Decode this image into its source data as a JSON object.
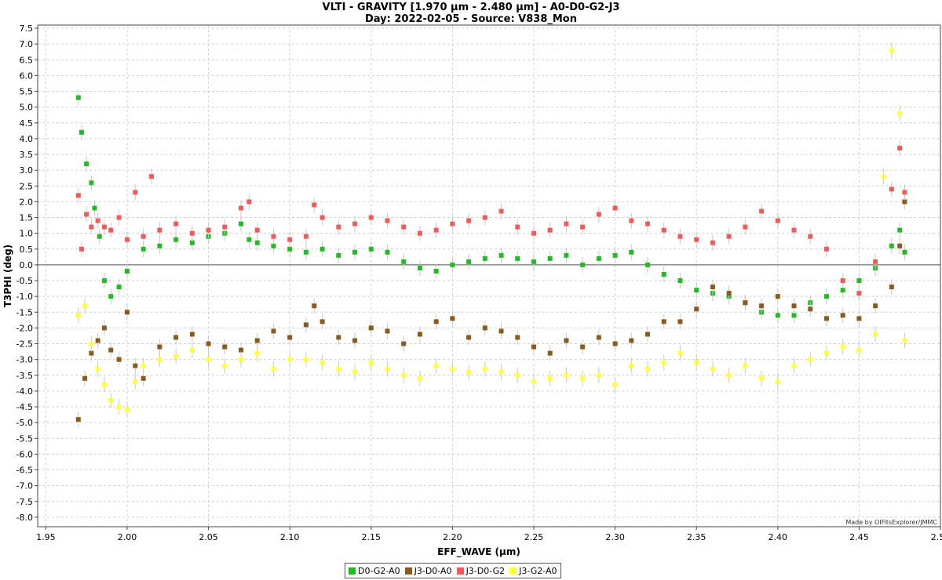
{
  "chart_data": {
    "type": "scatter",
    "title": "VLTI - GRAVITY [1.970 µm - 2.480 µm] - A0-D0-G2-J3",
    "subtitle": "Day: 2022-02-05 - Source: V838_Mon",
    "xlabel": "EFF_WAVE (µm)",
    "ylabel": "T3PHI (deg)",
    "xlim": [
      1.945,
      2.5
    ],
    "ylim": [
      -8.3,
      7.6
    ],
    "xticks": [
      "1.95",
      "2.00",
      "2.05",
      "2.10",
      "2.15",
      "2.20",
      "2.25",
      "2.30",
      "2.35",
      "2.40",
      "2.45",
      "2.50"
    ],
    "yticks": [
      "7.5",
      "7.0",
      "6.5",
      "6.0",
      "5.5",
      "5.0",
      "4.5",
      "4.0",
      "3.5",
      "3.0",
      "2.5",
      "2.0",
      "1.5",
      "1.0",
      "0.5",
      "0.0",
      "-0.5",
      "-1.0",
      "-1.5",
      "-2.0",
      "-2.5",
      "-3.0",
      "-3.5",
      "-4.0",
      "-4.5",
      "-5.0",
      "-5.5",
      "-6.0",
      "-6.5",
      "-7.0",
      "-7.5",
      "-8.0"
    ],
    "grid": true,
    "legend_position": "bottom-center",
    "credit": "Made by OIFitsExplorer/JMMC",
    "series": [
      {
        "name": "D0-G2-A0",
        "color": "#22bb22",
        "x": [
          1.97,
          1.972,
          1.975,
          1.978,
          1.98,
          1.983,
          1.986,
          1.99,
          1.995,
          2.0,
          2.01,
          2.02,
          2.03,
          2.04,
          2.05,
          2.06,
          2.07,
          2.075,
          2.08,
          2.09,
          2.1,
          2.11,
          2.12,
          2.13,
          2.14,
          2.15,
          2.16,
          2.17,
          2.18,
          2.19,
          2.2,
          2.21,
          2.22,
          2.23,
          2.24,
          2.25,
          2.26,
          2.27,
          2.28,
          2.29,
          2.3,
          2.31,
          2.32,
          2.33,
          2.34,
          2.35,
          2.36,
          2.37,
          2.38,
          2.39,
          2.4,
          2.41,
          2.42,
          2.43,
          2.44,
          2.45,
          2.46,
          2.47,
          2.475,
          2.478
        ],
        "y": [
          5.3,
          4.2,
          3.2,
          2.6,
          1.8,
          0.9,
          -0.5,
          -1.0,
          -0.7,
          -0.2,
          0.5,
          0.6,
          0.8,
          0.7,
          0.9,
          1.0,
          1.3,
          0.8,
          0.7,
          0.6,
          0.5,
          0.4,
          0.5,
          0.3,
          0.4,
          0.5,
          0.4,
          0.1,
          -0.1,
          -0.2,
          0.0,
          0.1,
          0.2,
          0.3,
          0.2,
          0.1,
          0.2,
          0.3,
          0.0,
          0.2,
          0.3,
          0.4,
          0.0,
          -0.3,
          -0.5,
          -0.8,
          -0.9,
          -1.0,
          -1.2,
          -1.5,
          -1.6,
          -1.6,
          -1.2,
          -1.0,
          -0.8,
          -0.5,
          -0.1,
          0.6,
          1.1,
          0.4
        ]
      },
      {
        "name": "J3-D0-A0",
        "color": "#8b5a1f",
        "x": [
          1.97,
          1.974,
          1.978,
          1.982,
          1.986,
          1.99,
          1.995,
          2.0,
          2.005,
          2.01,
          2.02,
          2.03,
          2.04,
          2.05,
          2.06,
          2.07,
          2.08,
          2.09,
          2.1,
          2.11,
          2.115,
          2.12,
          2.13,
          2.14,
          2.15,
          2.16,
          2.17,
          2.18,
          2.19,
          2.2,
          2.21,
          2.22,
          2.23,
          2.24,
          2.25,
          2.26,
          2.27,
          2.28,
          2.29,
          2.3,
          2.31,
          2.32,
          2.33,
          2.34,
          2.35,
          2.36,
          2.37,
          2.38,
          2.39,
          2.4,
          2.41,
          2.42,
          2.43,
          2.44,
          2.45,
          2.46,
          2.47,
          2.475,
          2.478
        ],
        "y": [
          -4.9,
          -3.6,
          -2.8,
          -2.4,
          -2.0,
          -2.7,
          -3.0,
          -1.5,
          -3.2,
          -3.6,
          -2.6,
          -2.3,
          -2.2,
          -2.5,
          -2.6,
          -2.7,
          -2.4,
          -2.1,
          -2.3,
          -1.9,
          -1.3,
          -1.8,
          -2.3,
          -2.4,
          -2.0,
          -2.1,
          -2.5,
          -2.2,
          -1.8,
          -1.7,
          -2.3,
          -2.0,
          -2.1,
          -2.3,
          -2.6,
          -2.8,
          -2.4,
          -2.6,
          -2.3,
          -2.5,
          -2.4,
          -2.2,
          -1.8,
          -1.8,
          -1.4,
          -0.7,
          -0.9,
          -1.2,
          -1.3,
          -1.0,
          -1.3,
          -1.4,
          -1.7,
          -1.6,
          -1.7,
          -1.3,
          -0.7,
          0.6,
          2.0
        ]
      },
      {
        "name": "J3-D0-G2",
        "color": "#f25a5a",
        "x": [
          1.97,
          1.972,
          1.975,
          1.978,
          1.982,
          1.986,
          1.99,
          1.995,
          2.0,
          2.005,
          2.01,
          2.015,
          2.02,
          2.03,
          2.04,
          2.05,
          2.06,
          2.07,
          2.075,
          2.08,
          2.09,
          2.1,
          2.11,
          2.115,
          2.12,
          2.13,
          2.14,
          2.15,
          2.16,
          2.17,
          2.18,
          2.19,
          2.2,
          2.21,
          2.22,
          2.23,
          2.24,
          2.25,
          2.26,
          2.27,
          2.28,
          2.29,
          2.3,
          2.31,
          2.32,
          2.33,
          2.34,
          2.35,
          2.36,
          2.37,
          2.38,
          2.39,
          2.4,
          2.41,
          2.42,
          2.43,
          2.44,
          2.45,
          2.46,
          2.47,
          2.475,
          2.478
        ],
        "y": [
          2.2,
          0.5,
          1.6,
          1.2,
          1.4,
          1.2,
          1.1,
          1.5,
          0.8,
          2.3,
          0.9,
          2.8,
          1.1,
          1.3,
          1.0,
          1.1,
          1.2,
          1.8,
          2.0,
          1.1,
          0.9,
          0.8,
          0.9,
          1.9,
          1.5,
          1.2,
          1.3,
          1.5,
          1.4,
          1.2,
          1.0,
          1.1,
          1.3,
          1.4,
          1.5,
          1.7,
          1.2,
          1.0,
          1.1,
          1.3,
          1.2,
          1.6,
          1.8,
          1.4,
          1.3,
          1.1,
          0.9,
          0.8,
          0.7,
          0.9,
          1.2,
          1.7,
          1.4,
          1.1,
          0.9,
          0.5,
          -0.5,
          -0.9,
          0.1,
          2.4,
          3.7,
          2.3
        ]
      },
      {
        "name": "J3-G2-A0",
        "color": "#ffff44",
        "x": [
          1.97,
          1.974,
          1.978,
          1.982,
          1.986,
          1.99,
          1.995,
          2.0,
          2.005,
          2.01,
          2.02,
          2.03,
          2.04,
          2.05,
          2.06,
          2.07,
          2.08,
          2.09,
          2.1,
          2.11,
          2.12,
          2.13,
          2.14,
          2.15,
          2.16,
          2.17,
          2.18,
          2.19,
          2.2,
          2.21,
          2.22,
          2.23,
          2.24,
          2.25,
          2.26,
          2.27,
          2.28,
          2.29,
          2.3,
          2.31,
          2.32,
          2.33,
          2.34,
          2.35,
          2.36,
          2.37,
          2.38,
          2.39,
          2.4,
          2.41,
          2.42,
          2.43,
          2.44,
          2.45,
          2.46,
          2.465,
          2.47,
          2.475,
          2.478
        ],
        "y": [
          -1.6,
          -1.3,
          -2.5,
          -3.3,
          -3.8,
          -4.3,
          -4.5,
          -4.6,
          -3.7,
          -3.2,
          -3.0,
          -2.9,
          -2.7,
          -3.0,
          -3.2,
          -3.0,
          -2.8,
          -3.3,
          -3.0,
          -3.0,
          -3.1,
          -3.3,
          -3.4,
          -3.1,
          -3.3,
          -3.5,
          -3.6,
          -3.2,
          -3.3,
          -3.4,
          -3.3,
          -3.4,
          -3.5,
          -3.7,
          -3.6,
          -3.5,
          -3.6,
          -3.5,
          -3.8,
          -3.2,
          -3.3,
          -3.1,
          -2.8,
          -3.1,
          -3.3,
          -3.5,
          -3.2,
          -3.6,
          -3.7,
          -3.2,
          -3.0,
          -2.8,
          -2.6,
          -2.7,
          -2.2,
          2.8,
          6.8,
          4.8,
          -2.4
        ]
      }
    ]
  }
}
